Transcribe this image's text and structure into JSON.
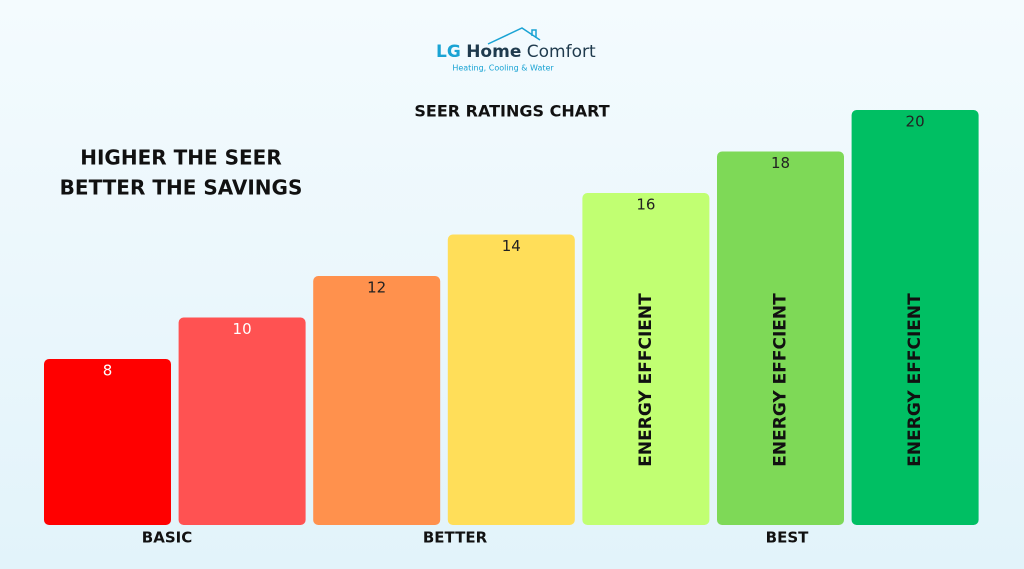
{
  "logo": {
    "name_parts": [
      "LG",
      "Home",
      "Comfort"
    ],
    "tagline": "Heating, Cooling & Water"
  },
  "chart_data": {
    "type": "bar",
    "title": "SEER RATINGS CHART",
    "headline": [
      "HIGHER THE SEER",
      "BETTER THE SAVINGS"
    ],
    "categories": [
      null,
      null,
      null,
      null,
      null,
      null,
      null
    ],
    "values": [
      8,
      10,
      12,
      14,
      16,
      18,
      20
    ],
    "colors": [
      "#ff0000",
      "#ff5252",
      "#ff914d",
      "#ffde59",
      "#c1ff72",
      "#7ed957",
      "#00bf63"
    ],
    "bar_annotations": [
      null,
      null,
      null,
      null,
      "ENERGY EFFCIENT",
      "ENERGY EFFCIENT",
      "ENERGY EFFCIENT"
    ],
    "groups": [
      "BASIC",
      "BETTER",
      "BEST"
    ]
  }
}
